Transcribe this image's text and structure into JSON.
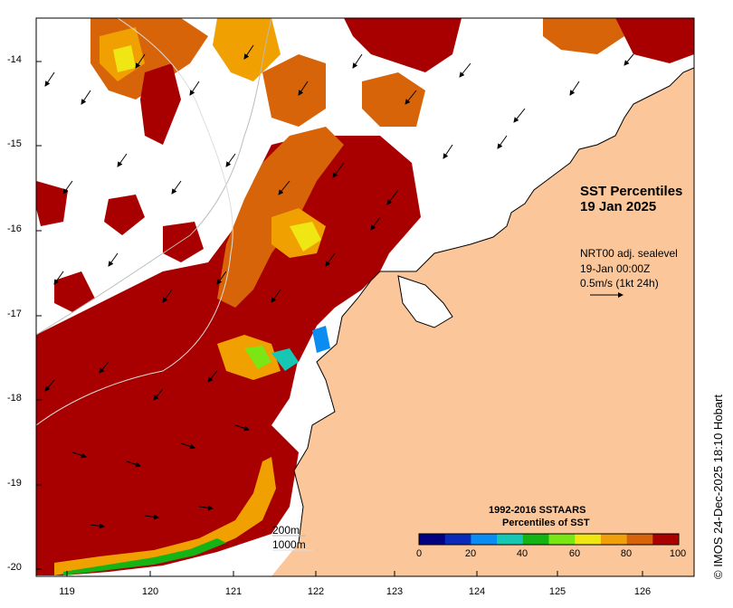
{
  "title": {
    "line1": "SST Percentiles",
    "line2": "19 Jan 2025"
  },
  "current_info": {
    "line1": "NRT00 adj. sealevel",
    "line2": "19-Jan 00:00Z",
    "line3": "0.5m/s (1kt 24h)"
  },
  "colorbar": {
    "title1": "1992-2016 SSTAARS",
    "title2": "Percentiles of SST",
    "ticks": [
      "0",
      "20",
      "40",
      "60",
      "80",
      "100"
    ],
    "colors": [
      "#000080",
      "#0a2ab8",
      "#0a8cf0",
      "#16c8b4",
      "#14b414",
      "#7ae614",
      "#f0e614",
      "#f0a00a",
      "#d7640a",
      "#aa0000"
    ]
  },
  "isobaths": {
    "line1": "200m",
    "line2": "1000m"
  },
  "credit": "© IMOS 24-Dec-2025 18:10 Hobart",
  "axes": {
    "y_ticks": [
      "-14",
      "-15",
      "-16",
      "-17",
      "-18",
      "-19",
      "-20"
    ],
    "x_ticks": [
      "119",
      "120",
      "121",
      "122",
      "123",
      "124",
      "125",
      "126"
    ]
  },
  "colors": {
    "land": "#fbc79a",
    "ocean_nodata": "#ffffff",
    "high": "#a80000",
    "orange": "#d8640a",
    "mid": "#f0a000"
  }
}
